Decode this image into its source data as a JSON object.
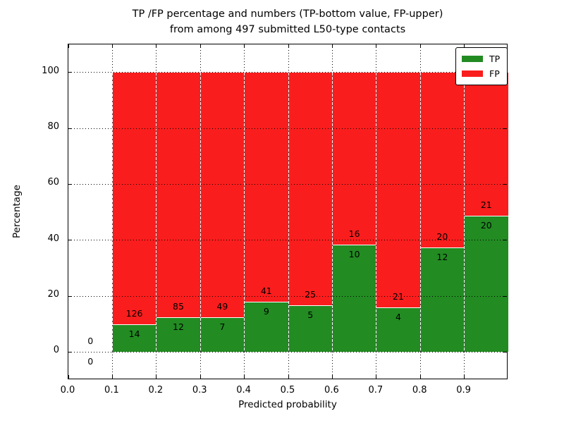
{
  "figure": {
    "background": "#ffffff",
    "title_line1": "TP /FP percentage and numbers (TP-bottom value, FP-upper)",
    "title_line2": "from among 497 submitted L50-type contacts"
  },
  "chart_data": {
    "type": "bar",
    "stacked": true,
    "normalized_to_percent": true,
    "title": "TP /FP percentage and numbers (TP-bottom value, FP-upper) from among 497 submitted L50-type contacts",
    "xlabel": "Predicted probability",
    "ylabel": "Percentage",
    "xlim": [
      0.0,
      1.0
    ],
    "ylim": [
      -10,
      110
    ],
    "grid": "dotted",
    "legend_position": "upper right",
    "x_tick_labels": [
      "0.0",
      "0.1",
      "0.2",
      "0.3",
      "0.4",
      "0.5",
      "0.6",
      "0.7",
      "0.8",
      "0.9"
    ],
    "x_tick_values": [
      0.0,
      0.1,
      0.2,
      0.3,
      0.4,
      0.5,
      0.6,
      0.7,
      0.8,
      0.9
    ],
    "y_tick_values": [
      0,
      20,
      40,
      60,
      80,
      100
    ],
    "bin_width": 0.1,
    "bins": [
      {
        "x_start": 0.0,
        "tp_count": 0,
        "fp_count": 0
      },
      {
        "x_start": 0.1,
        "tp_count": 14,
        "fp_count": 126
      },
      {
        "x_start": 0.2,
        "tp_count": 12,
        "fp_count": 85
      },
      {
        "x_start": 0.3,
        "tp_count": 7,
        "fp_count": 49
      },
      {
        "x_start": 0.4,
        "tp_count": 9,
        "fp_count": 41
      },
      {
        "x_start": 0.5,
        "tp_count": 5,
        "fp_count": 25
      },
      {
        "x_start": 0.6,
        "tp_count": 10,
        "fp_count": 16
      },
      {
        "x_start": 0.7,
        "tp_count": 4,
        "fp_count": 21
      },
      {
        "x_start": 0.8,
        "tp_count": 12,
        "fp_count": 20
      },
      {
        "x_start": 0.9,
        "tp_count": 20,
        "fp_count": 21
      }
    ],
    "series": [
      {
        "name": "TP",
        "color": "#228b22",
        "values": [
          0,
          14,
          12,
          7,
          9,
          5,
          10,
          4,
          12,
          20
        ]
      },
      {
        "name": "FP",
        "color": "#fa1d1d",
        "values": [
          0,
          126,
          85,
          49,
          41,
          25,
          16,
          21,
          20,
          21
        ]
      }
    ],
    "legend": [
      {
        "label": "TP",
        "color": "#228b22"
      },
      {
        "label": "FP",
        "color": "#fa1d1d"
      }
    ],
    "colors": {
      "tp": "#228b22",
      "fp": "#fa1d1d",
      "grid": "#000000",
      "frame": "#000000",
      "bar_edge": "#ffffff"
    }
  }
}
